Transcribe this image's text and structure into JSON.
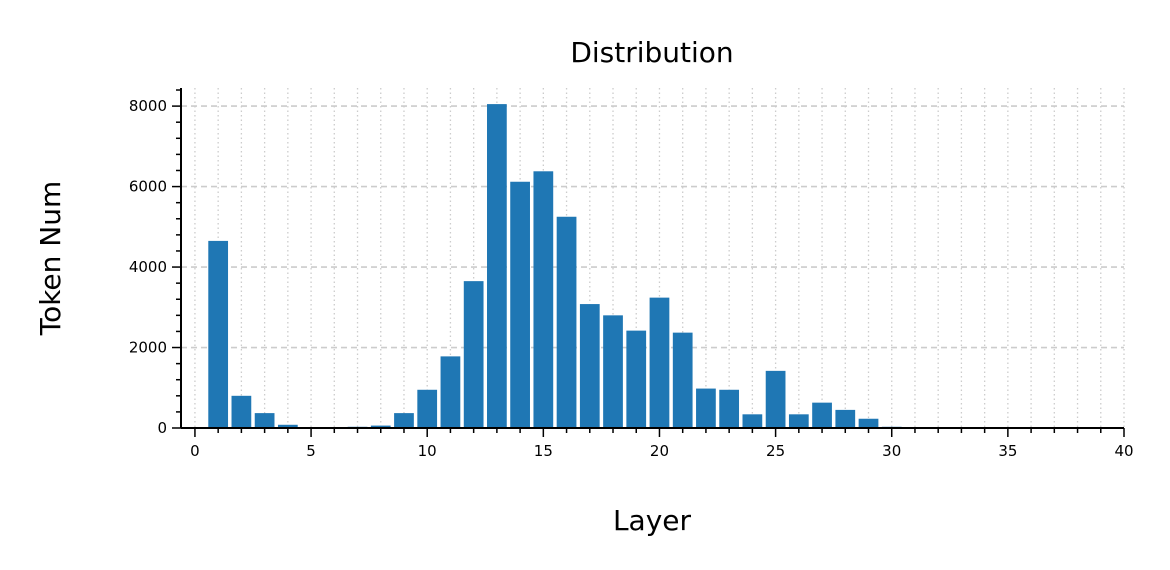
{
  "chart_data": {
    "type": "bar",
    "title": "Distribution",
    "xlabel": "Layer",
    "ylabel": "Token Num",
    "xlim": [
      -0.6,
      40
    ],
    "ylim": [
      0,
      8450
    ],
    "x_ticks": [
      0,
      5,
      10,
      15,
      20,
      25,
      30,
      35,
      40
    ],
    "y_ticks": [
      0,
      2000,
      4000,
      6000,
      8000
    ],
    "grid": {
      "y_major": "dashed",
      "x_minor": "dotted"
    },
    "bar_color": "#1f77b4",
    "grid_color": "#cccccc",
    "x": [
      1,
      2,
      3,
      4,
      5,
      6,
      7,
      8,
      9,
      10,
      11,
      12,
      13,
      14,
      15,
      16,
      17,
      18,
      19,
      20,
      21,
      22,
      23,
      24,
      25,
      26,
      27,
      28,
      29,
      30
    ],
    "values": [
      4650,
      800,
      370,
      80,
      15,
      10,
      30,
      60,
      370,
      950,
      1780,
      3650,
      8050,
      6120,
      6380,
      5250,
      3080,
      2800,
      2420,
      3240,
      2370,
      980,
      950,
      340,
      1420,
      340,
      630,
      450,
      230,
      30
    ]
  }
}
